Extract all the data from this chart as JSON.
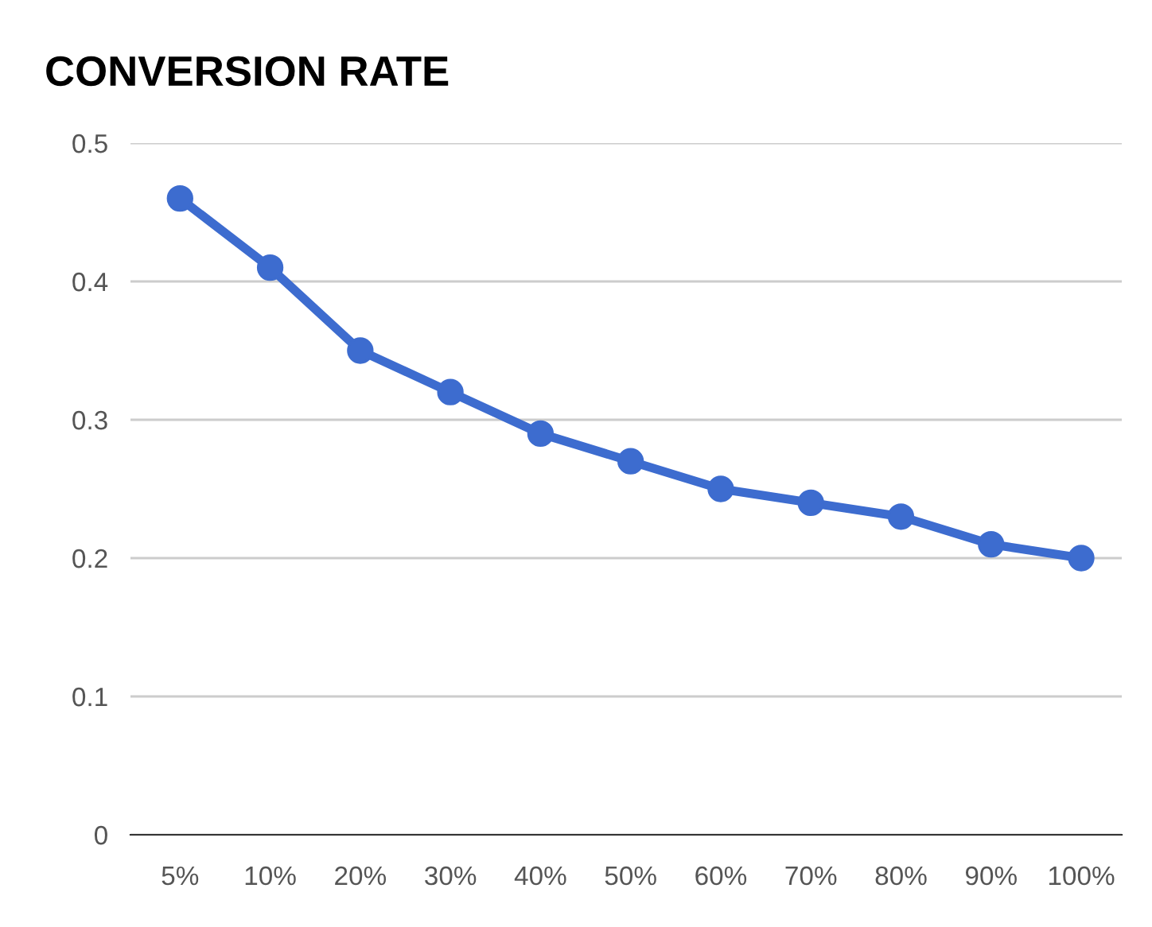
{
  "chart_data": {
    "type": "line",
    "title": "CONVERSION RATE",
    "categories": [
      "5%",
      "10%",
      "20%",
      "30%",
      "40%",
      "50%",
      "60%",
      "70%",
      "80%",
      "90%",
      "100%"
    ],
    "series": [
      {
        "color": "#3d6ccf",
        "values": [
          0.46,
          0.41,
          0.35,
          0.32,
          0.29,
          0.27,
          0.25,
          0.24,
          0.23,
          0.21,
          0.2
        ]
      }
    ],
    "ylim": [
      0,
      0.5
    ],
    "yticks": [
      0,
      0.1,
      0.2,
      0.3,
      0.4,
      0.5
    ],
    "grid": "y",
    "marker": "circle",
    "line_style": "solid",
    "legend": false
  }
}
